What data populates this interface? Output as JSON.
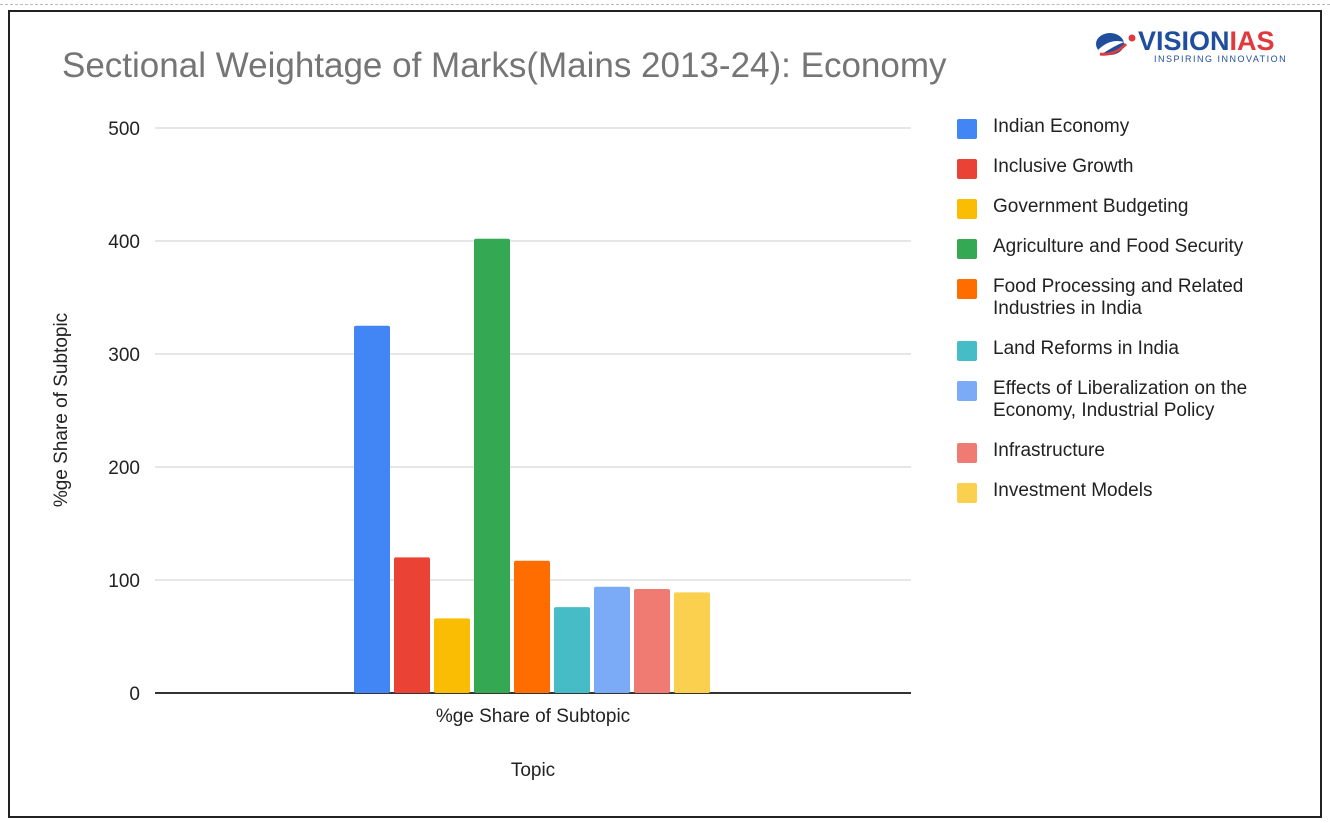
{
  "chart_data": {
    "type": "bar",
    "title": "Sectional Weightage of Marks(Mains 2013-24): Economy",
    "xlabel": "Topic",
    "ylabel": "%ge Share of Subtopic",
    "categories": [
      "%ge Share of Subtopic"
    ],
    "ylim": [
      0,
      500
    ],
    "yticks": [
      "0",
      "100",
      "200",
      "300",
      "400",
      "500"
    ],
    "grid": true,
    "legend_position": "right",
    "series": [
      {
        "name": "Indian Economy",
        "values": [
          325
        ],
        "color": "#4285f4"
      },
      {
        "name": "Inclusive Growth",
        "values": [
          120
        ],
        "color": "#ea4335"
      },
      {
        "name": "Government Budgeting",
        "values": [
          66
        ],
        "color": "#fbbc04"
      },
      {
        "name": "Agriculture and Food Security",
        "values": [
          402
        ],
        "color": "#34a853"
      },
      {
        "name": "Food Processing and Related Industries in India",
        "values": [
          117
        ],
        "color": "#ff6d01"
      },
      {
        "name": "Land Reforms in India",
        "values": [
          76
        ],
        "color": "#46bdc6"
      },
      {
        "name": "Effects of Liberalization on the Economy, Industrial Policy",
        "values": [
          94
        ],
        "color": "#7baaf7"
      },
      {
        "name": "Infrastructure",
        "values": [
          92
        ],
        "color": "#f07b72"
      },
      {
        "name": "Investment Models",
        "values": [
          89
        ],
        "color": "#fcd04f"
      }
    ]
  },
  "logo": {
    "brand_a": "VISION",
    "brand_b": "IAS",
    "tagline": "INSPIRING INNOVATION"
  }
}
